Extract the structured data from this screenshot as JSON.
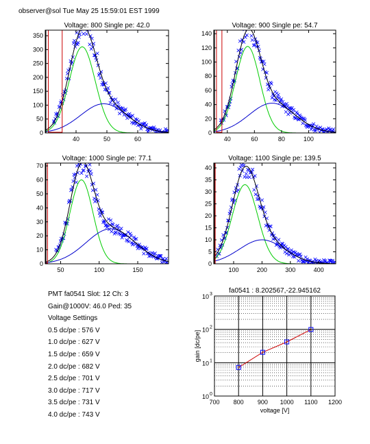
{
  "header": "observer@sol  Tue May 25 15:59:01 EST 1999",
  "info": {
    "pmt_line": "PMT fa0541 Slot: 12 Ch: 3",
    "gain_line": "Gain@1000V: 46.0 Ped: 35",
    "settings_title": "Voltage Settings",
    "settings": [
      "0.5 dc/pe : 576 V",
      "1.0 dc/pe : 627 V",
      "1.5 dc/pe : 659 V",
      "2.0 dc/pe : 682 V",
      "2.5 dc/pe : 701 V",
      "3.0 dc/pe : 717 V",
      "3.5 dc/pe : 731 V",
      "4.0 dc/pe : 743 V"
    ]
  },
  "colors": {
    "data": "#0000ff",
    "total_fit": "#000000",
    "pe1_fit": "#00cc00",
    "pe2_fit": "#0000cc",
    "pedestal": "#cc0000",
    "gain_line": "#cc0000",
    "gain_marker": "#0000ff"
  },
  "chart_data": [
    {
      "type": "scatter",
      "title": "Voltage: 800 Single pe: 42.0",
      "xlim": [
        30,
        70
      ],
      "ylim": [
        0,
        370
      ],
      "xticks": [
        40,
        50,
        60
      ],
      "yticks": [
        0,
        50,
        100,
        150,
        200,
        250,
        300,
        350
      ],
      "pedestal_x": [
        31,
        35.5
      ],
      "series": [
        {
          "name": "",
          "kind": "points",
          "mean": 42,
          "sigma": 4.2,
          "amp": 310,
          "mean2": 49,
          "sigma2": 7.5,
          "amp2": 105
        },
        {
          "name": "",
          "kind": "fit"
        }
      ]
    },
    {
      "type": "scatter",
      "title": "Voltage: 900 Single pe: 54.7",
      "xlim": [
        30,
        120
      ],
      "ylim": [
        0,
        145
      ],
      "xticks": [
        40,
        60,
        80,
        100
      ],
      "yticks": [
        0,
        20,
        40,
        60,
        80,
        100,
        120,
        140
      ],
      "pedestal_x": [
        32,
        36
      ],
      "series": [
        {
          "name": "",
          "kind": "points",
          "mean": 55,
          "sigma": 9,
          "amp": 122,
          "mean2": 73,
          "sigma2": 17,
          "amp2": 42
        },
        {
          "name": "",
          "kind": "fit"
        }
      ]
    },
    {
      "type": "scatter",
      "title": "Voltage: 1000 Single pe: 77.1",
      "xlim": [
        30,
        190
      ],
      "ylim": [
        0,
        72
      ],
      "xticks": [
        50,
        100,
        150
      ],
      "yticks": [
        0,
        10,
        20,
        30,
        40,
        50,
        60,
        70
      ],
      "pedestal_x": [
        31,
        33
      ],
      "series": [
        {
          "name": "",
          "kind": "points",
          "mean": 77,
          "sigma": 15,
          "amp": 60,
          "mean2": 115,
          "sigma2": 32,
          "amp2": 25
        },
        {
          "name": "",
          "kind": "fit"
        }
      ]
    },
    {
      "type": "scatter",
      "title": "Voltage: 1100 Single pe: 139.5",
      "xlim": [
        30,
        460
      ],
      "ylim": [
        0,
        42
      ],
      "xticks": [
        100,
        200,
        300,
        400
      ],
      "yticks": [
        0,
        5,
        10,
        15,
        20,
        25,
        30,
        35,
        40
      ],
      "pedestal_x": [
        32,
        35
      ],
      "series": [
        {
          "name": "",
          "kind": "points",
          "mean": 140,
          "sigma": 45,
          "amp": 33,
          "mean2": 200,
          "sigma2": 80,
          "amp2": 10
        },
        {
          "name": "",
          "kind": "fit"
        }
      ]
    },
    {
      "type": "line",
      "title": "fa0541 : 8.202567,-22.945162",
      "xlabel": "voltage [V]",
      "ylabel": "gain [dc/pe]",
      "xlim": [
        700,
        1200
      ],
      "ylim": [
        1,
        1000
      ],
      "yscale": "log",
      "xticks": [
        700,
        800,
        900,
        1000,
        1100,
        1200
      ],
      "ytick_labels": [
        "10",
        "10",
        "10",
        "10"
      ],
      "ytick_exponents": [
        "0",
        "1",
        "2",
        "3"
      ],
      "grid": true,
      "x": [
        800,
        900,
        1000,
        1100
      ],
      "y": [
        7.2,
        20.5,
        42.0,
        99.0
      ]
    }
  ]
}
